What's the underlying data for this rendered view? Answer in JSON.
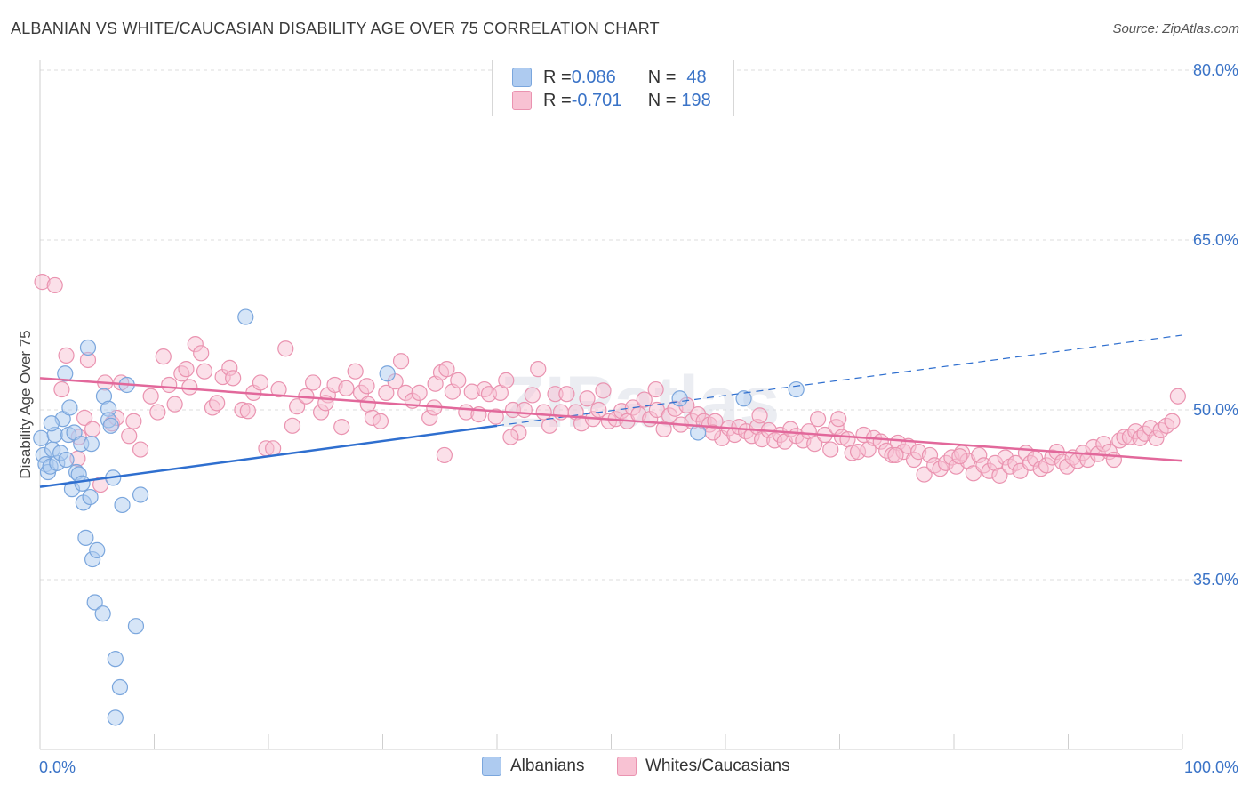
{
  "title": "ALBANIAN VS WHITE/CAUCASIAN DISABILITY AGE OVER 75 CORRELATION CHART",
  "source": "Source: ZipAtlas.com",
  "legend": {
    "rows": [
      {
        "r_label": "R = ",
        "r_value": "0.086",
        "n_label": "N = ",
        "n_value": "48",
        "color": "#aecbf0",
        "border": "#7aa6dd"
      },
      {
        "r_label": "R = ",
        "r_value": "-0.701",
        "n_label": "N = ",
        "n_value": "198",
        "color": "#f8c2d3",
        "border": "#ea93b0"
      }
    ]
  },
  "bottom_legend": [
    {
      "label": "Albanians",
      "color": "#aecbf0",
      "border": "#7aa6dd"
    },
    {
      "label": "Whites/Caucasians",
      "color": "#f8c2d3",
      "border": "#ea93b0"
    }
  ],
  "chart_data": {
    "type": "scatter",
    "title": "ALBANIAN VS WHITE/CAUCASIAN DISABILITY AGE OVER 75 CORRELATION CHART",
    "xlabel": "",
    "ylabel": "Disability Age Over 75",
    "x_unit": "%",
    "xlim": [
      0,
      100
    ],
    "ylim": [
      20,
      82.5
    ],
    "x_tick_labels": [
      "0.0%",
      "100.0%"
    ],
    "y_ticks": [
      35,
      50,
      65,
      80
    ],
    "y_tick_labels": [
      "35.0%",
      "50.0%",
      "65.0%",
      "80.0%"
    ],
    "grid": true,
    "legend_position": "top-center",
    "watermark": "ZIPatlas",
    "series": [
      {
        "name": "Albanians",
        "color": "#7aa6dd",
        "fill": "#aecbf0",
        "trend_color": "#2f6fcf",
        "trend_solid": [
          [
            0,
            43.2
          ],
          [
            40,
            48.6
          ]
        ],
        "trend_dashed": [
          [
            40,
            48.6
          ],
          [
            100,
            56.6
          ]
        ],
        "points": [
          [
            0.1,
            47.5
          ],
          [
            0.3,
            46
          ],
          [
            0.5,
            45.2
          ],
          [
            0.7,
            44.5
          ],
          [
            0.9,
            45
          ],
          [
            1.1,
            46.5
          ],
          [
            1.3,
            47.8
          ],
          [
            1.5,
            45.3
          ],
          [
            1.8,
            46.2
          ],
          [
            2.0,
            49.2
          ],
          [
            2.2,
            53.2
          ],
          [
            2.5,
            47.8
          ],
          [
            2.6,
            50.2
          ],
          [
            2.8,
            43
          ],
          [
            3.0,
            48
          ],
          [
            3.2,
            44.5
          ],
          [
            3.4,
            44.3
          ],
          [
            3.6,
            47
          ],
          [
            3.7,
            43.5
          ],
          [
            3.8,
            41.8
          ],
          [
            4.0,
            38.7
          ],
          [
            4.2,
            55.5
          ],
          [
            4.4,
            42.3
          ],
          [
            4.5,
            47
          ],
          [
            4.6,
            36.8
          ],
          [
            4.8,
            33
          ],
          [
            5.0,
            37.6
          ],
          [
            5.5,
            32
          ],
          [
            5.6,
            51.2
          ],
          [
            6.0,
            50.1
          ],
          [
            6.0,
            49.1
          ],
          [
            6.2,
            48.6
          ],
          [
            6.4,
            44
          ],
          [
            6.6,
            28
          ],
          [
            7.0,
            25.5
          ],
          [
            7.2,
            41.6
          ],
          [
            7.6,
            52.2
          ],
          [
            8.4,
            30.9
          ],
          [
            8.8,
            42.5
          ],
          [
            18.0,
            58.2
          ],
          [
            30.4,
            53.2
          ],
          [
            56.0,
            51
          ],
          [
            57.6,
            48
          ],
          [
            61.6,
            51
          ],
          [
            66.2,
            51.8
          ],
          [
            6.6,
            22.8
          ],
          [
            2.3,
            45.6
          ],
          [
            1.0,
            48.8
          ]
        ]
      },
      {
        "name": "Whites/Caucasians",
        "color": "#ea93b0",
        "fill": "#f8c2d3",
        "trend_color": "#e2689b",
        "trend_solid": [
          [
            0,
            52.8
          ],
          [
            100,
            45.5
          ]
        ],
        "points": [
          [
            0.2,
            61.3
          ],
          [
            1.3,
            61
          ],
          [
            1.9,
            51.8
          ],
          [
            2.3,
            54.8
          ],
          [
            3.3,
            45.7
          ],
          [
            3.4,
            47.6
          ],
          [
            3.9,
            49.3
          ],
          [
            4.2,
            54.4
          ],
          [
            4.6,
            48.3
          ],
          [
            5.3,
            43.4
          ],
          [
            5.7,
            52.4
          ],
          [
            6.3,
            48.8
          ],
          [
            6.7,
            49.3
          ],
          [
            7.1,
            52.4
          ],
          [
            7.8,
            47.7
          ],
          [
            8.2,
            49
          ],
          [
            8.8,
            46.5
          ],
          [
            9.7,
            51.2
          ],
          [
            10.3,
            49.8
          ],
          [
            10.8,
            54.7
          ],
          [
            11.3,
            52.2
          ],
          [
            11.8,
            50.5
          ],
          [
            12.4,
            53.2
          ],
          [
            12.8,
            53.6
          ],
          [
            13.1,
            52
          ],
          [
            13.6,
            55.8
          ],
          [
            14.1,
            55
          ],
          [
            14.4,
            53.4
          ],
          [
            15.1,
            50.2
          ],
          [
            15.5,
            50.6
          ],
          [
            16.0,
            52.9
          ],
          [
            16.6,
            53.7
          ],
          [
            16.9,
            52.8
          ],
          [
            17.7,
            50
          ],
          [
            18.2,
            49.9
          ],
          [
            18.7,
            51.5
          ],
          [
            19.3,
            52.4
          ],
          [
            19.8,
            46.6
          ],
          [
            20.4,
            46.6
          ],
          [
            20.9,
            51.8
          ],
          [
            21.5,
            55.4
          ],
          [
            22.1,
            48.6
          ],
          [
            22.5,
            50.3
          ],
          [
            23.3,
            51.2
          ],
          [
            23.9,
            52.4
          ],
          [
            24.6,
            49.8
          ],
          [
            25.2,
            51.3
          ],
          [
            25.8,
            52.2
          ],
          [
            26.4,
            48.5
          ],
          [
            26.8,
            51.9
          ],
          [
            27.6,
            53.4
          ],
          [
            28.1,
            51.5
          ],
          [
            28.7,
            50.5
          ],
          [
            29.1,
            49.3
          ],
          [
            29.8,
            49
          ],
          [
            30.3,
            51.5
          ],
          [
            31.1,
            52.5
          ],
          [
            31.6,
            54.3
          ],
          [
            32.0,
            51.5
          ],
          [
            32.6,
            50.8
          ],
          [
            33.2,
            51.5
          ],
          [
            34.1,
            49.3
          ],
          [
            34.6,
            52.3
          ],
          [
            35.1,
            53.3
          ],
          [
            35.6,
            53.6
          ],
          [
            36.1,
            51.6
          ],
          [
            36.6,
            52.6
          ],
          [
            37.3,
            49.8
          ],
          [
            37.8,
            51.6
          ],
          [
            38.4,
            49.6
          ],
          [
            38.9,
            51.8
          ],
          [
            39.3,
            51.4
          ],
          [
            39.9,
            49.4
          ],
          [
            40.3,
            51.5
          ],
          [
            40.8,
            52.6
          ],
          [
            41.4,
            50
          ],
          [
            41.9,
            48
          ],
          [
            42.4,
            50
          ],
          [
            43.1,
            51.3
          ],
          [
            43.6,
            53.6
          ],
          [
            44.1,
            49.8
          ],
          [
            44.6,
            48.6
          ],
          [
            45.1,
            51.4
          ],
          [
            45.6,
            49.8
          ],
          [
            46.1,
            51.4
          ],
          [
            46.9,
            49.8
          ],
          [
            47.4,
            48.8
          ],
          [
            47.9,
            51
          ],
          [
            48.4,
            49.2
          ],
          [
            48.9,
            50
          ],
          [
            49.3,
            51.7
          ],
          [
            49.8,
            49
          ],
          [
            50.4,
            49.2
          ],
          [
            50.9,
            49.9
          ],
          [
            51.4,
            49
          ],
          [
            51.9,
            50.2
          ],
          [
            52.4,
            49.6
          ],
          [
            52.9,
            50.9
          ],
          [
            53.4,
            49.2
          ],
          [
            54.0,
            50
          ],
          [
            54.6,
            48.3
          ],
          [
            55.1,
            49.5
          ],
          [
            55.6,
            50.1
          ],
          [
            56.1,
            48.7
          ],
          [
            56.6,
            50.4
          ],
          [
            57.1,
            49
          ],
          [
            57.6,
            49.6
          ],
          [
            58.1,
            49
          ],
          [
            58.6,
            48.7
          ],
          [
            59.1,
            49
          ],
          [
            59.7,
            47.5
          ],
          [
            60.3,
            48.4
          ],
          [
            60.8,
            47.8
          ],
          [
            61.2,
            48.5
          ],
          [
            61.8,
            48.1
          ],
          [
            62.3,
            47.7
          ],
          [
            62.8,
            48.5
          ],
          [
            63.2,
            47.4
          ],
          [
            63.8,
            48.2
          ],
          [
            64.3,
            47.3
          ],
          [
            64.8,
            47.8
          ],
          [
            65.2,
            47.2
          ],
          [
            65.7,
            48.3
          ],
          [
            66.2,
            47.7
          ],
          [
            66.8,
            47.3
          ],
          [
            67.3,
            48.1
          ],
          [
            67.8,
            47
          ],
          [
            68.1,
            49.2
          ],
          [
            68.7,
            47.8
          ],
          [
            69.2,
            46.5
          ],
          [
            69.7,
            48.5
          ],
          [
            70.2,
            47.6
          ],
          [
            70.7,
            47.4
          ],
          [
            71.1,
            46.2
          ],
          [
            71.6,
            46.3
          ],
          [
            72.1,
            47.8
          ],
          [
            72.5,
            46.5
          ],
          [
            73.0,
            47.5
          ],
          [
            73.6,
            47.2
          ],
          [
            74.1,
            46.4
          ],
          [
            74.6,
            46
          ],
          [
            75.1,
            47.1
          ],
          [
            75.6,
            46.3
          ],
          [
            76.0,
            46.8
          ],
          [
            76.5,
            45.6
          ],
          [
            76.9,
            46.3
          ],
          [
            77.4,
            44.3
          ],
          [
            77.9,
            46
          ],
          [
            78.3,
            45.1
          ],
          [
            78.8,
            44.8
          ],
          [
            79.3,
            45.3
          ],
          [
            79.8,
            45.8
          ],
          [
            80.2,
            45
          ],
          [
            80.7,
            46.2
          ],
          [
            81.2,
            45.5
          ],
          [
            81.7,
            44.4
          ],
          [
            82.2,
            46
          ],
          [
            82.6,
            45.1
          ],
          [
            83.1,
            44.6
          ],
          [
            83.6,
            45.3
          ],
          [
            84.0,
            44.2
          ],
          [
            84.5,
            45.8
          ],
          [
            84.9,
            45
          ],
          [
            85.4,
            45.3
          ],
          [
            85.8,
            44.6
          ],
          [
            86.3,
            46.2
          ],
          [
            86.7,
            45.3
          ],
          [
            87.1,
            45.7
          ],
          [
            87.6,
            44.8
          ],
          [
            88.1,
            45.1
          ],
          [
            88.6,
            45.8
          ],
          [
            89.0,
            46.3
          ],
          [
            89.5,
            45.4
          ],
          [
            89.9,
            45
          ],
          [
            90.4,
            45.8
          ],
          [
            90.8,
            45.5
          ],
          [
            91.3,
            46.2
          ],
          [
            91.7,
            45.6
          ],
          [
            92.2,
            46.7
          ],
          [
            92.6,
            46.1
          ],
          [
            93.1,
            47
          ],
          [
            93.6,
            46.3
          ],
          [
            94.0,
            45.6
          ],
          [
            94.5,
            47.3
          ],
          [
            94.9,
            47.6
          ],
          [
            95.4,
            47.6
          ],
          [
            95.9,
            48.1
          ],
          [
            96.3,
            47.5
          ],
          [
            96.7,
            47.9
          ],
          [
            97.2,
            48.4
          ],
          [
            97.7,
            47.5
          ],
          [
            98.1,
            48.2
          ],
          [
            98.6,
            48.6
          ],
          [
            99.1,
            49
          ],
          [
            99.6,
            51.2
          ],
          [
            35.4,
            46
          ],
          [
            25.0,
            50.6
          ],
          [
            28.6,
            52.1
          ],
          [
            34.5,
            50.2
          ],
          [
            41.2,
            47.6
          ],
          [
            53.9,
            51.8
          ],
          [
            58.9,
            48
          ],
          [
            63.0,
            49.5
          ],
          [
            69.9,
            49.2
          ],
          [
            74.9,
            46
          ],
          [
            80.5,
            45.9
          ]
        ]
      }
    ]
  }
}
